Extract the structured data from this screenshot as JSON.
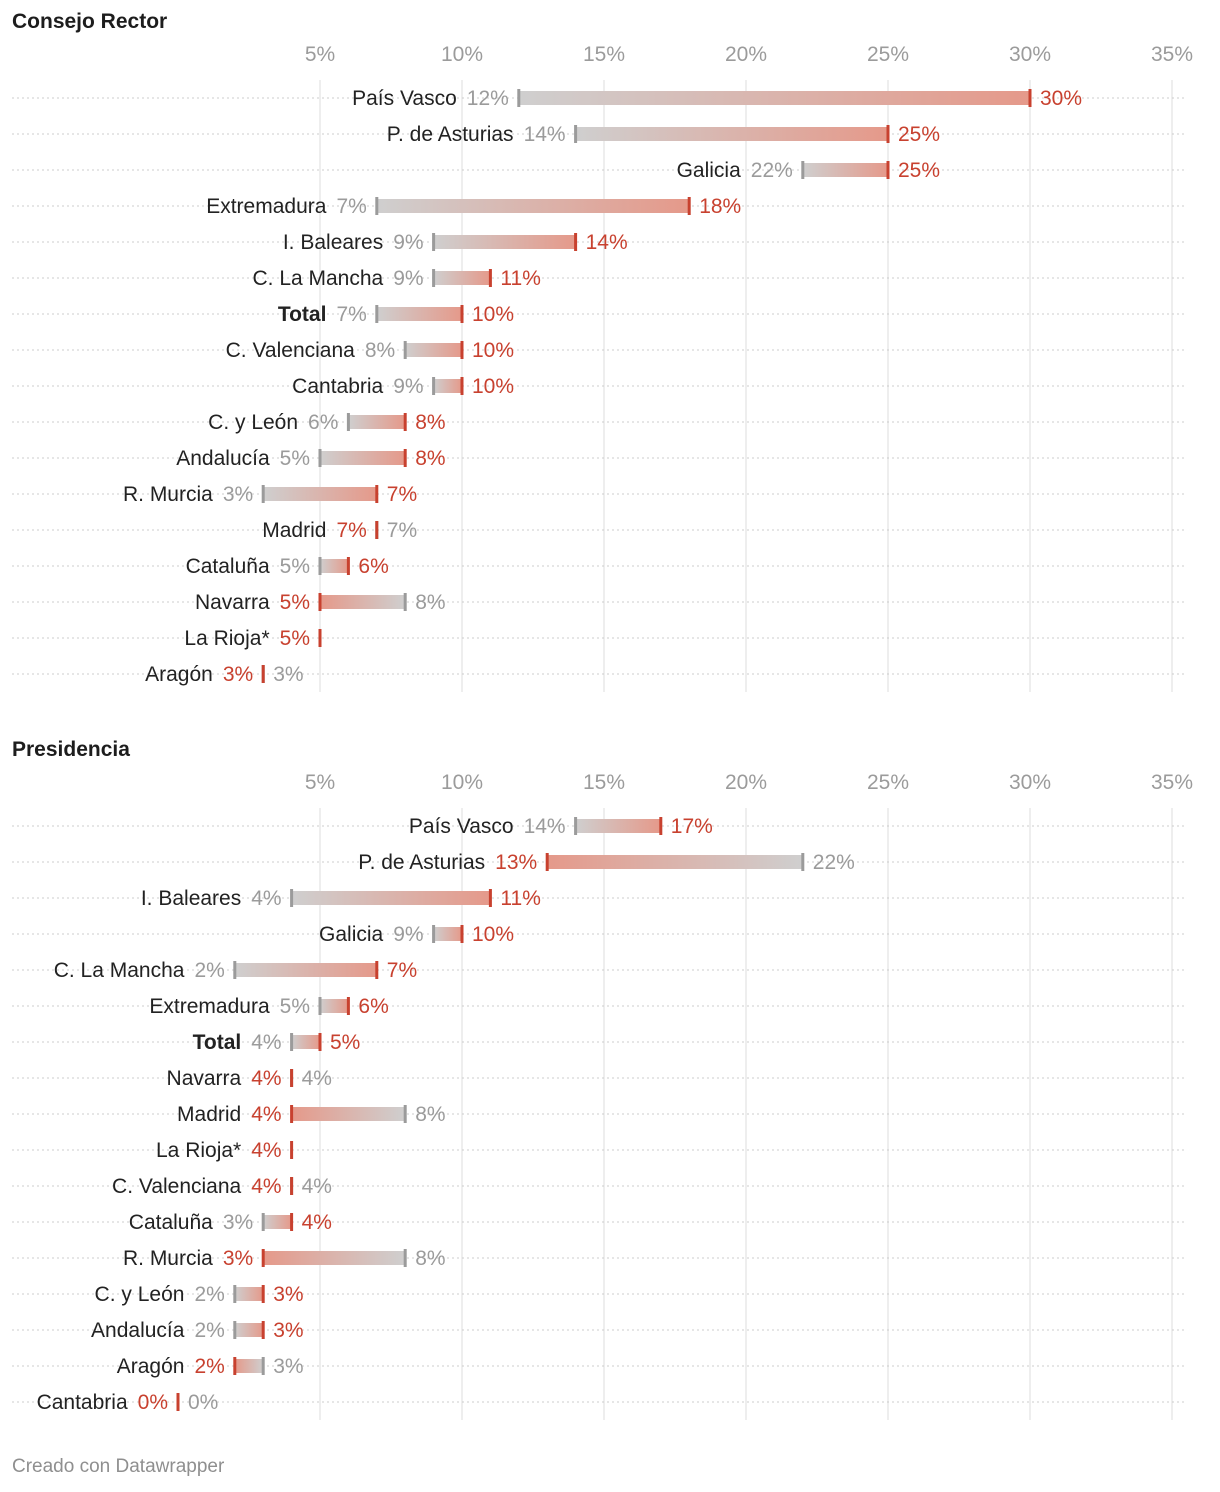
{
  "chart_data": [
    {
      "type": "dumbbell",
      "title": "Consejo Rector",
      "x_ticks": [
        "5%",
        "10%",
        "15%",
        "20%",
        "25%",
        "30%",
        "35%"
      ],
      "xlim": [
        0,
        36
      ],
      "colors": {
        "start": "#9b9b9b",
        "end": "#c8412f",
        "axis": "#9b9b9b"
      },
      "rows": [
        {
          "label": "País Vasco",
          "start": 12,
          "end": 30,
          "bold": false
        },
        {
          "label": "P. de Asturias",
          "start": 14,
          "end": 25,
          "bold": false
        },
        {
          "label": "Galicia",
          "start": 22,
          "end": 25,
          "bold": false
        },
        {
          "label": "Extremadura",
          "start": 7,
          "end": 18,
          "bold": false
        },
        {
          "label": "I. Baleares",
          "start": 9,
          "end": 14,
          "bold": false
        },
        {
          "label": "C. La Mancha",
          "start": 9,
          "end": 11,
          "bold": false
        },
        {
          "label": "Total",
          "start": 7,
          "end": 10,
          "bold": true
        },
        {
          "label": "C. Valenciana",
          "start": 8,
          "end": 10,
          "bold": false
        },
        {
          "label": "Cantabria",
          "start": 9,
          "end": 10,
          "bold": false
        },
        {
          "label": "C. y León",
          "start": 6,
          "end": 8,
          "bold": false
        },
        {
          "label": "Andalucía",
          "start": 5,
          "end": 8,
          "bold": false
        },
        {
          "label": "R. Murcia",
          "start": 3,
          "end": 7,
          "bold": false
        },
        {
          "label": "Madrid",
          "start": 7,
          "end": 7,
          "bold": false
        },
        {
          "label": "Cataluña",
          "start": 5,
          "end": 6,
          "bold": false
        },
        {
          "label": "Navarra",
          "start": 8,
          "end": 5,
          "bold": false
        },
        {
          "label": "La Rioja*",
          "start": null,
          "end": 5,
          "bold": false
        },
        {
          "label": "Aragón",
          "start": 3,
          "end": 3,
          "bold": false
        }
      ]
    },
    {
      "type": "dumbbell",
      "title": "Presidencia",
      "x_ticks": [
        "5%",
        "10%",
        "15%",
        "20%",
        "25%",
        "30%",
        "35%"
      ],
      "xlim": [
        0,
        36
      ],
      "colors": {
        "start": "#9b9b9b",
        "end": "#c8412f",
        "axis": "#9b9b9b"
      },
      "rows": [
        {
          "label": "País Vasco",
          "start": 14,
          "end": 17,
          "bold": false
        },
        {
          "label": "P. de Asturias",
          "start": 22,
          "end": 13,
          "bold": false
        },
        {
          "label": "I. Baleares",
          "start": 4,
          "end": 11,
          "bold": false
        },
        {
          "label": "Galicia",
          "start": 9,
          "end": 10,
          "bold": false
        },
        {
          "label": "C. La Mancha",
          "start": 2,
          "end": 7,
          "bold": false
        },
        {
          "label": "Extremadura",
          "start": 5,
          "end": 6,
          "bold": false
        },
        {
          "label": "Total",
          "start": 4,
          "end": 5,
          "bold": true
        },
        {
          "label": "Navarra",
          "start": 4,
          "end": 4,
          "bold": false
        },
        {
          "label": "Madrid",
          "start": 8,
          "end": 4,
          "bold": false
        },
        {
          "label": "La Rioja*",
          "start": null,
          "end": 4,
          "bold": false
        },
        {
          "label": "C. Valenciana",
          "start": 4,
          "end": 4,
          "bold": false
        },
        {
          "label": "Cataluña",
          "start": 3,
          "end": 4,
          "bold": false
        },
        {
          "label": "R. Murcia",
          "start": 8,
          "end": 3,
          "bold": false
        },
        {
          "label": "C. y León",
          "start": 2,
          "end": 3,
          "bold": false
        },
        {
          "label": "Andalucía",
          "start": 2,
          "end": 3,
          "bold": false
        },
        {
          "label": "Aragón",
          "start": 3,
          "end": 2,
          "bold": false
        },
        {
          "label": "Cantabria",
          "start": 0,
          "end": 0,
          "bold": false
        }
      ]
    }
  ],
  "footer": {
    "credit": "Creado con Datawrapper"
  }
}
